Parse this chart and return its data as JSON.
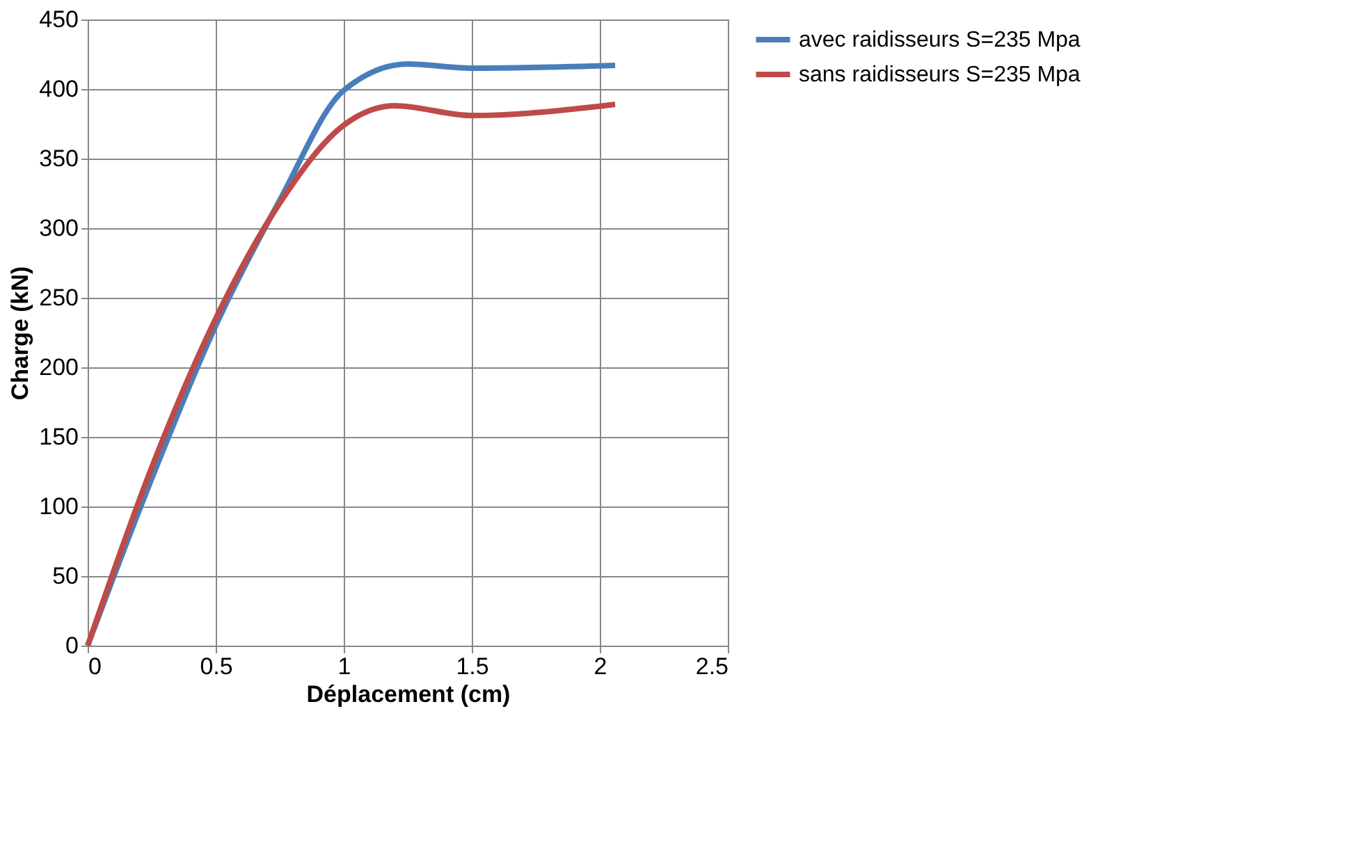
{
  "chart_data": {
    "type": "line",
    "xlabel": "Déplacement (cm)",
    "ylabel": "Charge (kN)",
    "xlim": [
      0,
      2.5
    ],
    "xticks": [
      0,
      0.5,
      1,
      1.5,
      2,
      2.5
    ],
    "ylim": [
      0,
      450
    ],
    "yticks": [
      0,
      50,
      100,
      150,
      200,
      250,
      300,
      350,
      400,
      450
    ],
    "grid": true,
    "legend": "right",
    "line_style": "solid",
    "marker": "none",
    "series": [
      {
        "name": "avec raidisseurs S=235 Mpa",
        "color": "#4a7ebb",
        "x": [
          0,
          0.25,
          0.5,
          0.75,
          1.0,
          1.25,
          1.5,
          2.06
        ],
        "values": [
          0,
          120,
          230,
          320,
          399,
          418,
          415,
          417
        ]
      },
      {
        "name": "sans raidisseurs S=235 Mpa",
        "color": "#be4b48",
        "x": [
          0,
          0.25,
          0.5,
          0.75,
          1.0,
          1.2,
          1.5,
          2.06
        ],
        "values": [
          0,
          128,
          235,
          318,
          374,
          388,
          381,
          389
        ]
      }
    ]
  }
}
